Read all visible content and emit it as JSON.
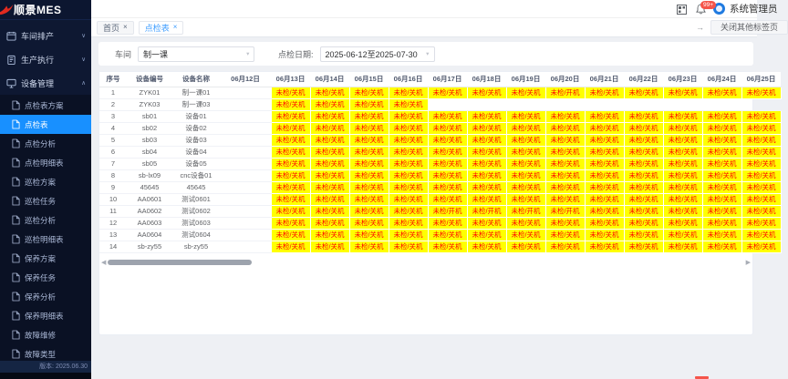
{
  "app": {
    "logo_text": "顺景MES",
    "version": "版本: 2025.06.30"
  },
  "header": {
    "user_name": "系统管理员",
    "notification_badge": "99+"
  },
  "tabbar": {
    "tabs": [
      {
        "label": "首页",
        "active": false
      },
      {
        "label": "点检表",
        "active": true
      }
    ],
    "close_others_label": "关闭其他标签页"
  },
  "sidebar": {
    "groups": [
      {
        "label": "车间排产",
        "icon": "workshop-icon",
        "expanded": false,
        "children": []
      },
      {
        "label": "生产执行",
        "icon": "production-icon",
        "expanded": false,
        "children": []
      },
      {
        "label": "设备管理",
        "icon": "equipment-icon",
        "expanded": true,
        "active_child": "点检表",
        "children": [
          "点检表方案",
          "点检表",
          "点检分析",
          "点检明细表",
          "巡检方案",
          "巡检任务",
          "巡检分析",
          "巡检明细表",
          "保养方案",
          "保养任务",
          "保养分析",
          "保养明细表",
          "故障维修",
          "故障类型"
        ]
      }
    ]
  },
  "filters": {
    "workshop_label": "车间",
    "workshop_value": "制一课",
    "date_label": "点检日期:",
    "date_value": "2025-06-12至2025-07-30"
  },
  "table": {
    "fixed_headers": [
      "序号",
      "设备编号",
      "设备名称"
    ],
    "date_headers": [
      "06月12日",
      "06月13日",
      "06月14日",
      "06月15日",
      "06月16日",
      "06月17日",
      "06月18日",
      "06月19日",
      "06月20日",
      "06月21日",
      "06月22日",
      "06月23日",
      "06月24日",
      "06月25日"
    ],
    "cell_states": {
      "off": "未检/关机",
      "on": "未检/开机"
    },
    "rows": [
      {
        "no": "1",
        "code": "ZYK01",
        "name": "制一课01",
        "cells": [
          "",
          "off",
          "off",
          "off",
          "off",
          "off",
          "off",
          "off",
          "on",
          "off",
          "off",
          "off",
          "off",
          "off"
        ]
      },
      {
        "no": "2",
        "code": "ZYK03",
        "name": "制一课03",
        "cells": [
          "",
          "off",
          "off",
          "off",
          "off",
          "",
          "",
          "",
          "",
          "",
          "",
          "",
          "",
          ""
        ]
      },
      {
        "no": "3",
        "code": "sb01",
        "name": "设备01",
        "cells": [
          "",
          "off",
          "off",
          "off",
          "off",
          "off",
          "off",
          "off",
          "off",
          "off",
          "off",
          "off",
          "off",
          "off"
        ]
      },
      {
        "no": "4",
        "code": "sb02",
        "name": "设备02",
        "cells": [
          "",
          "off",
          "off",
          "off",
          "off",
          "off",
          "off",
          "off",
          "off",
          "off",
          "off",
          "off",
          "off",
          "off"
        ]
      },
      {
        "no": "5",
        "code": "sb03",
        "name": "设备03",
        "cells": [
          "",
          "off",
          "off",
          "off",
          "off",
          "off",
          "off",
          "off",
          "off",
          "off",
          "off",
          "off",
          "off",
          "off"
        ]
      },
      {
        "no": "6",
        "code": "sb04",
        "name": "设备04",
        "cells": [
          "",
          "off",
          "off",
          "off",
          "off",
          "off",
          "off",
          "off",
          "off",
          "off",
          "off",
          "off",
          "off",
          "off"
        ]
      },
      {
        "no": "7",
        "code": "sb05",
        "name": "设备05",
        "cells": [
          "",
          "off",
          "off",
          "off",
          "off",
          "off",
          "off",
          "off",
          "off",
          "off",
          "off",
          "off",
          "off",
          "off"
        ]
      },
      {
        "no": "8",
        "code": "sb-lx09",
        "name": "cnc设备01",
        "cells": [
          "",
          "off",
          "off",
          "off",
          "off",
          "off",
          "off",
          "off",
          "off",
          "off",
          "off",
          "off",
          "off",
          "off"
        ]
      },
      {
        "no": "9",
        "code": "45645",
        "name": "45645",
        "cells": [
          "",
          "off",
          "off",
          "off",
          "off",
          "off",
          "off",
          "off",
          "off",
          "off",
          "off",
          "off",
          "off",
          "off"
        ]
      },
      {
        "no": "10",
        "code": "AA0601",
        "name": "测试0601",
        "cells": [
          "",
          "off",
          "off",
          "off",
          "off",
          "off",
          "off",
          "off",
          "off",
          "off",
          "off",
          "off",
          "off",
          "off"
        ]
      },
      {
        "no": "11",
        "code": "AA0602",
        "name": "测试0602",
        "cells": [
          "",
          "off",
          "off",
          "off",
          "off",
          "on",
          "on",
          "on",
          "on",
          "off",
          "off",
          "off",
          "off",
          "off"
        ]
      },
      {
        "no": "12",
        "code": "AA0603",
        "name": "测试0603",
        "cells": [
          "",
          "off",
          "off",
          "off",
          "off",
          "off",
          "off",
          "off",
          "off",
          "off",
          "off",
          "off",
          "off",
          "off"
        ]
      },
      {
        "no": "13",
        "code": "AA0604",
        "name": "测试0604",
        "cells": [
          "",
          "off",
          "off",
          "off",
          "off",
          "off",
          "off",
          "off",
          "off",
          "off",
          "off",
          "off",
          "off",
          "off"
        ]
      },
      {
        "no": "14",
        "code": "sb-zy55",
        "name": "sb-zy55",
        "cells": [
          "",
          "off",
          "off",
          "off",
          "off",
          "off",
          "off",
          "off",
          "off",
          "off",
          "off",
          "off",
          "off",
          "off"
        ]
      }
    ]
  },
  "colors": {
    "accent_blue": "#1890ff",
    "tab_active_blue": "#409eff",
    "warn_bg": "#ffff00",
    "warn_text": "#ff0000",
    "badge_red": "#f5554a",
    "sidebar_bg": "#0e1832"
  }
}
